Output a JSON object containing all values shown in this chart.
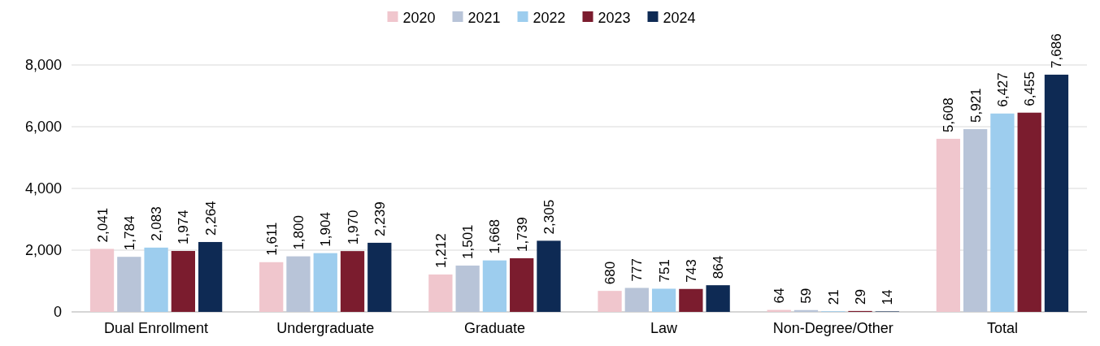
{
  "chart_data": {
    "type": "bar",
    "categories": [
      "Dual Enrollment",
      "Undergraduate",
      "Graduate",
      "Law",
      "Non-Degree/Other",
      "Total"
    ],
    "series": [
      {
        "name": "2020",
        "color": "#f0c6cd",
        "values": [
          2041,
          1611,
          1212,
          680,
          64,
          5608
        ],
        "value_labels": [
          "2,041",
          "1,611",
          "1,212",
          "680",
          "64",
          "5,608"
        ]
      },
      {
        "name": "2021",
        "color": "#b8c4d8",
        "values": [
          1784,
          1800,
          1501,
          777,
          59,
          5921
        ],
        "value_labels": [
          "1,784",
          "1,800",
          "1,501",
          "777",
          "59",
          "5,921"
        ]
      },
      {
        "name": "2022",
        "color": "#9dcdee",
        "values": [
          2083,
          1904,
          1668,
          751,
          21,
          6427
        ],
        "value_labels": [
          "2,083",
          "1,904",
          "1,668",
          "751",
          "21",
          "6,427"
        ]
      },
      {
        "name": "2023",
        "color": "#7b1c2e",
        "values": [
          1974,
          1970,
          1739,
          743,
          29,
          6455
        ],
        "value_labels": [
          "1,974",
          "1,970",
          "1,739",
          "743",
          "29",
          "6,455"
        ]
      },
      {
        "name": "2024",
        "color": "#0e2a54",
        "values": [
          2264,
          2239,
          2305,
          864,
          14,
          7686
        ],
        "value_labels": [
          "2,264",
          "2,239",
          "2,305",
          "864",
          "14",
          "7,686"
        ]
      }
    ],
    "ylim": [
      0,
      8000
    ],
    "yticks": [
      {
        "value": 0,
        "label": "0"
      },
      {
        "value": 2000,
        "label": "2,000"
      },
      {
        "value": 4000,
        "label": "4,000"
      },
      {
        "value": 6000,
        "label": "6,000"
      },
      {
        "value": 8000,
        "label": "8,000"
      }
    ],
    "grid": "y",
    "legend": "top"
  }
}
